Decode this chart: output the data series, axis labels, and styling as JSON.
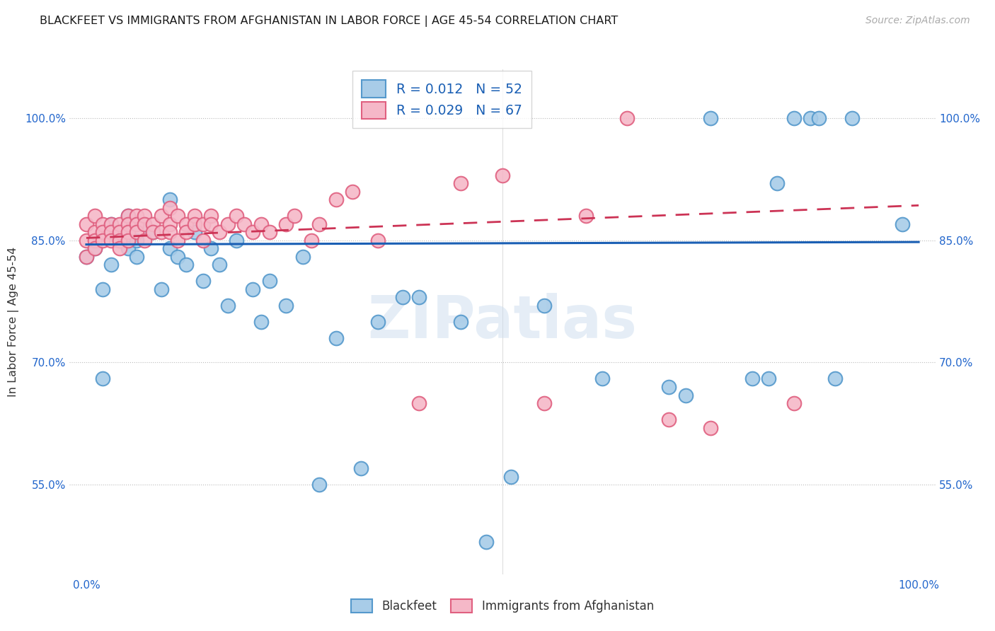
{
  "title": "BLACKFEET VS IMMIGRANTS FROM AFGHANISTAN IN LABOR FORCE | AGE 45-54 CORRELATION CHART",
  "source": "Source: ZipAtlas.com",
  "ylabel": "In Labor Force | Age 45-54",
  "xlim": [
    -0.02,
    1.02
  ],
  "ylim": [
    0.44,
    1.06
  ],
  "yticks": [
    0.55,
    0.7,
    0.85,
    1.0
  ],
  "ytick_labels": [
    "55.0%",
    "70.0%",
    "85.0%",
    "100.0%"
  ],
  "blue_R": 0.012,
  "blue_N": 52,
  "pink_R": 0.029,
  "pink_N": 67,
  "legend_blue": "Blackfeet",
  "legend_pink": "Immigrants from Afghanistan",
  "blue_color": "#a8cce8",
  "pink_color": "#f5b8c8",
  "blue_edge": "#5599cc",
  "pink_edge": "#e06080",
  "blue_trend_color": "#1a5fb4",
  "pink_trend_color": "#cc3355",
  "blue_trendline": [
    [
      0.0,
      0.845
    ],
    [
      1.0,
      0.848
    ]
  ],
  "pink_trendline": [
    [
      0.0,
      0.853
    ],
    [
      1.0,
      0.893
    ]
  ],
  "blue_x": [
    0.0,
    0.01,
    0.02,
    0.02,
    0.03,
    0.03,
    0.04,
    0.05,
    0.05,
    0.06,
    0.06,
    0.07,
    0.08,
    0.09,
    0.1,
    0.1,
    0.11,
    0.12,
    0.13,
    0.14,
    0.15,
    0.16,
    0.17,
    0.18,
    0.2,
    0.21,
    0.22,
    0.24,
    0.26,
    0.28,
    0.3,
    0.33,
    0.35,
    0.38,
    0.4,
    0.45,
    0.48,
    0.51,
    0.55,
    0.62,
    0.7,
    0.72,
    0.75,
    0.8,
    0.82,
    0.83,
    0.85,
    0.87,
    0.88,
    0.9,
    0.92,
    0.98
  ],
  "blue_y": [
    0.83,
    0.84,
    0.68,
    0.79,
    0.82,
    0.87,
    0.85,
    0.88,
    0.84,
    0.83,
    0.85,
    0.87,
    0.86,
    0.79,
    0.9,
    0.84,
    0.83,
    0.82,
    0.86,
    0.8,
    0.84,
    0.82,
    0.77,
    0.85,
    0.79,
    0.75,
    0.8,
    0.77,
    0.83,
    0.55,
    0.73,
    0.57,
    0.75,
    0.78,
    0.78,
    0.75,
    0.48,
    0.56,
    0.77,
    0.68,
    0.67,
    0.66,
    1.0,
    0.68,
    0.68,
    0.92,
    1.0,
    1.0,
    1.0,
    0.68,
    1.0,
    0.87
  ],
  "pink_x": [
    0.0,
    0.0,
    0.0,
    0.01,
    0.01,
    0.01,
    0.01,
    0.02,
    0.02,
    0.02,
    0.03,
    0.03,
    0.03,
    0.04,
    0.04,
    0.04,
    0.04,
    0.05,
    0.05,
    0.05,
    0.05,
    0.06,
    0.06,
    0.06,
    0.07,
    0.07,
    0.07,
    0.08,
    0.08,
    0.09,
    0.09,
    0.1,
    0.1,
    0.1,
    0.11,
    0.11,
    0.12,
    0.12,
    0.13,
    0.13,
    0.14,
    0.14,
    0.15,
    0.15,
    0.16,
    0.17,
    0.18,
    0.19,
    0.2,
    0.21,
    0.22,
    0.24,
    0.25,
    0.27,
    0.28,
    0.3,
    0.32,
    0.35,
    0.4,
    0.45,
    0.5,
    0.55,
    0.6,
    0.65,
    0.7,
    0.75,
    0.85
  ],
  "pink_y": [
    0.87,
    0.85,
    0.83,
    0.88,
    0.86,
    0.85,
    0.84,
    0.87,
    0.86,
    0.85,
    0.87,
    0.86,
    0.85,
    0.87,
    0.86,
    0.85,
    0.84,
    0.88,
    0.87,
    0.86,
    0.85,
    0.88,
    0.87,
    0.86,
    0.88,
    0.87,
    0.85,
    0.87,
    0.86,
    0.88,
    0.86,
    0.89,
    0.87,
    0.86,
    0.88,
    0.85,
    0.87,
    0.86,
    0.88,
    0.87,
    0.87,
    0.85,
    0.88,
    0.87,
    0.86,
    0.87,
    0.88,
    0.87,
    0.86,
    0.87,
    0.86,
    0.87,
    0.88,
    0.85,
    0.87,
    0.9,
    0.91,
    0.85,
    0.65,
    0.92,
    0.93,
    0.65,
    0.88,
    1.0,
    0.63,
    0.62,
    0.65
  ]
}
